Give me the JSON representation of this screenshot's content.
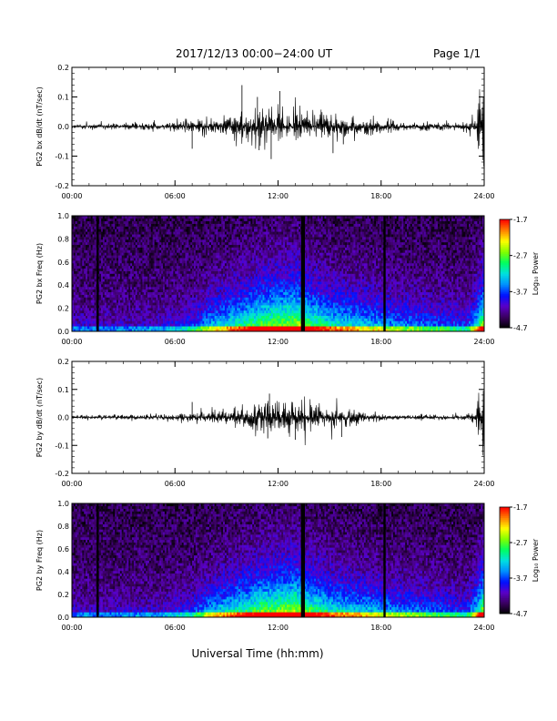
{
  "header": {
    "title": "2017/12/13  00:00−24:00 UT",
    "page": "Page 1/1"
  },
  "chart_data": [
    {
      "type": "line",
      "ylabel": "PG2 bx dB/dt (nT/sec)",
      "xlim": [
        0,
        24
      ],
      "ylim": [
        -0.2,
        0.2
      ],
      "yticks": [
        -0.2,
        -0.1,
        0.0,
        0.1,
        0.2
      ],
      "yticklabels": [
        "-0.2",
        "-0.1",
        "0.0",
        "0.1",
        "0.2"
      ],
      "xticks": [
        0,
        6,
        12,
        18,
        24
      ],
      "xticklabels": [
        "00:00",
        "06:00",
        "12:00",
        "18:00",
        "24:00"
      ],
      "color": "#000000",
      "envelope": {
        "hours": [
          0,
          3,
          5,
          7,
          8,
          9,
          10,
          11,
          12,
          13,
          14,
          15,
          16,
          17,
          18,
          19,
          20,
          21,
          22,
          23,
          23.5,
          23.8,
          24
        ],
        "amplitude": [
          0.008,
          0.01,
          0.012,
          0.02,
          0.028,
          0.033,
          0.048,
          0.05,
          0.052,
          0.055,
          0.045,
          0.04,
          0.035,
          0.028,
          0.018,
          0.015,
          0.012,
          0.01,
          0.01,
          0.015,
          0.04,
          0.12,
          0.2
        ]
      },
      "spikes": [
        {
          "x": 7.0,
          "y": -0.075
        },
        {
          "x": 9.9,
          "y": 0.14
        },
        {
          "x": 10.8,
          "y": 0.1
        },
        {
          "x": 10.9,
          "y": -0.08
        },
        {
          "x": 11.6,
          "y": -0.11
        },
        {
          "x": 12.1,
          "y": 0.12
        },
        {
          "x": 15.2,
          "y": -0.09
        },
        {
          "x": 15.8,
          "y": -0.06
        }
      ]
    },
    {
      "type": "heatmap",
      "ylabel": "PG2 bx Freq (Hz)",
      "xlim": [
        0,
        24
      ],
      "ylim": [
        0,
        1.0
      ],
      "yticks": [
        0.0,
        0.2,
        0.4,
        0.6,
        0.8,
        1.0
      ],
      "yticklabels": [
        "0.0",
        "0.2",
        "0.4",
        "0.6",
        "0.8",
        "1.0"
      ],
      "xticks": [
        0,
        6,
        12,
        18,
        24
      ],
      "xticklabels": [
        "00:00",
        "06:00",
        "12:00",
        "18:00",
        "24:00"
      ],
      "gaps_hours": [
        1.5,
        13.4,
        13.5,
        18.2
      ],
      "colorbar": {
        "label": "Log₁₀ Power",
        "range": [
          -4.7,
          -1.7
        ],
        "ticks": [
          -1.7,
          -2.7,
          -3.7,
          -4.7
        ],
        "ticklabels": [
          "-1.7",
          "-2.7",
          "-3.7",
          "-4.7"
        ],
        "colors": [
          "#000000",
          "#3a0060",
          "#5a00c8",
          "#0010ff",
          "#0090ff",
          "#00e0e0",
          "#00ff60",
          "#80ff00",
          "#ffff00",
          "#ff8000",
          "#ff0000"
        ]
      }
    },
    {
      "type": "line",
      "ylabel": "PG2 by dB/dt (nT/sec)",
      "xlim": [
        0,
        24
      ],
      "ylim": [
        -0.2,
        0.2
      ],
      "yticks": [
        -0.2,
        -0.1,
        0.0,
        0.1,
        0.2
      ],
      "yticklabels": [
        "-0.2",
        "-0.1",
        "0.0",
        "0.1",
        "0.2"
      ],
      "xticks": [
        0,
        6,
        12,
        18,
        24
      ],
      "xticklabels": [
        "00:00",
        "06:00",
        "12:00",
        "18:00",
        "24:00"
      ],
      "color": "#000000",
      "envelope": {
        "hours": [
          0,
          3,
          5,
          7,
          8,
          9,
          10,
          11,
          12,
          13,
          14,
          15,
          16,
          17,
          18,
          19,
          20,
          21,
          22,
          23,
          23.5,
          23.8,
          24
        ],
        "amplitude": [
          0.006,
          0.008,
          0.01,
          0.015,
          0.018,
          0.022,
          0.035,
          0.045,
          0.05,
          0.05,
          0.045,
          0.035,
          0.028,
          0.02,
          0.012,
          0.01,
          0.008,
          0.008,
          0.008,
          0.012,
          0.03,
          0.11,
          0.2
        ]
      },
      "spikes": [
        {
          "x": 7.0,
          "y": 0.055
        },
        {
          "x": 11.5,
          "y": 0.085
        },
        {
          "x": 11.4,
          "y": -0.075
        },
        {
          "x": 13.0,
          "y": -0.08
        },
        {
          "x": 15.7,
          "y": -0.07
        }
      ]
    },
    {
      "type": "heatmap",
      "ylabel": "PG2 by Freq (Hz)",
      "xlim": [
        0,
        24
      ],
      "ylim": [
        0,
        1.0
      ],
      "yticks": [
        0.0,
        0.2,
        0.4,
        0.6,
        0.8,
        1.0
      ],
      "yticklabels": [
        "0.0",
        "0.2",
        "0.4",
        "0.6",
        "0.8",
        "1.0"
      ],
      "xticks": [
        0,
        6,
        12,
        18,
        24
      ],
      "xticklabels": [
        "00:00",
        "06:00",
        "12:00",
        "18:00",
        "24:00"
      ],
      "gaps_hours": [
        1.5,
        13.4,
        13.5,
        18.2
      ],
      "colorbar": {
        "label": "Log₁₀ Power",
        "range": [
          -4.7,
          -1.7
        ],
        "ticks": [
          -1.7,
          -2.7,
          -3.7,
          -4.7
        ],
        "ticklabels": [
          "-1.7",
          "-2.7",
          "-3.7",
          "-4.7"
        ],
        "colors": [
          "#000000",
          "#3a0060",
          "#5a00c8",
          "#0010ff",
          "#0090ff",
          "#00e0e0",
          "#00ff60",
          "#80ff00",
          "#ffff00",
          "#ff8000",
          "#ff0000"
        ]
      }
    }
  ],
  "xlabel": "Universal Time (hh:mm)"
}
